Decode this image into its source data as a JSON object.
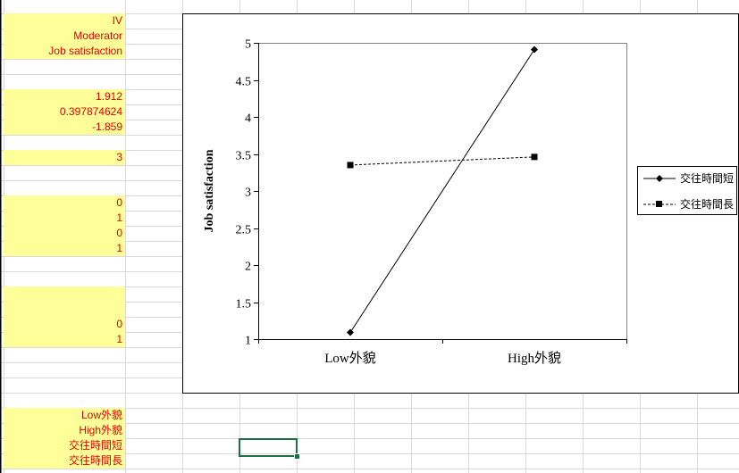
{
  "cells": [
    {
      "row": 1,
      "text": "IV"
    },
    {
      "row": 2,
      "text": "Moderator"
    },
    {
      "row": 3,
      "text": "Job satisfaction"
    },
    {
      "row": 6,
      "text": "1.912"
    },
    {
      "row": 7,
      "text": "0.397874624"
    },
    {
      "row": 8,
      "text": "-1.859"
    },
    {
      "row": 10,
      "text": "3"
    },
    {
      "row": 13,
      "text": "0"
    },
    {
      "row": 14,
      "text": "1"
    },
    {
      "row": 15,
      "text": "0"
    },
    {
      "row": 16,
      "text": "1"
    },
    {
      "row": 21,
      "text": "0"
    },
    {
      "row": 22,
      "text": "1"
    },
    {
      "row": 27,
      "text": "Low外貌"
    },
    {
      "row": 28,
      "text": "High外貌"
    },
    {
      "row": 29,
      "text": "交往時間短"
    },
    {
      "row": 30,
      "text": "交往時間長"
    }
  ],
  "yellow_rows": [
    1,
    2,
    3,
    6,
    7,
    8,
    10,
    13,
    14,
    15,
    16,
    19,
    20,
    21,
    22,
    27,
    28,
    29,
    30
  ],
  "colors": {
    "cell_fill": "#ffff99",
    "cell_text": "#e00000",
    "gridline": "#d9d9d9",
    "selection": "#1f6e43",
    "plot_line": "#000000"
  },
  "chart_data": {
    "type": "line",
    "categories": [
      "Low外貌",
      "High外貌"
    ],
    "ylabel": "Job satisfaction",
    "xlabel": "",
    "ylim": [
      1,
      5
    ],
    "yticks": [
      "1",
      "1.5",
      "2",
      "2.5",
      "3",
      "3.5",
      "4",
      "4.5",
      "5"
    ],
    "grid": false,
    "legend": "right",
    "series": [
      {
        "name": "交往時間短",
        "values": [
          1.09,
          4.91
        ],
        "marker": "diamond",
        "line": "solid"
      },
      {
        "name": "交往時間長",
        "values": [
          3.35,
          3.46
        ],
        "marker": "square",
        "line": "dashed"
      }
    ]
  }
}
